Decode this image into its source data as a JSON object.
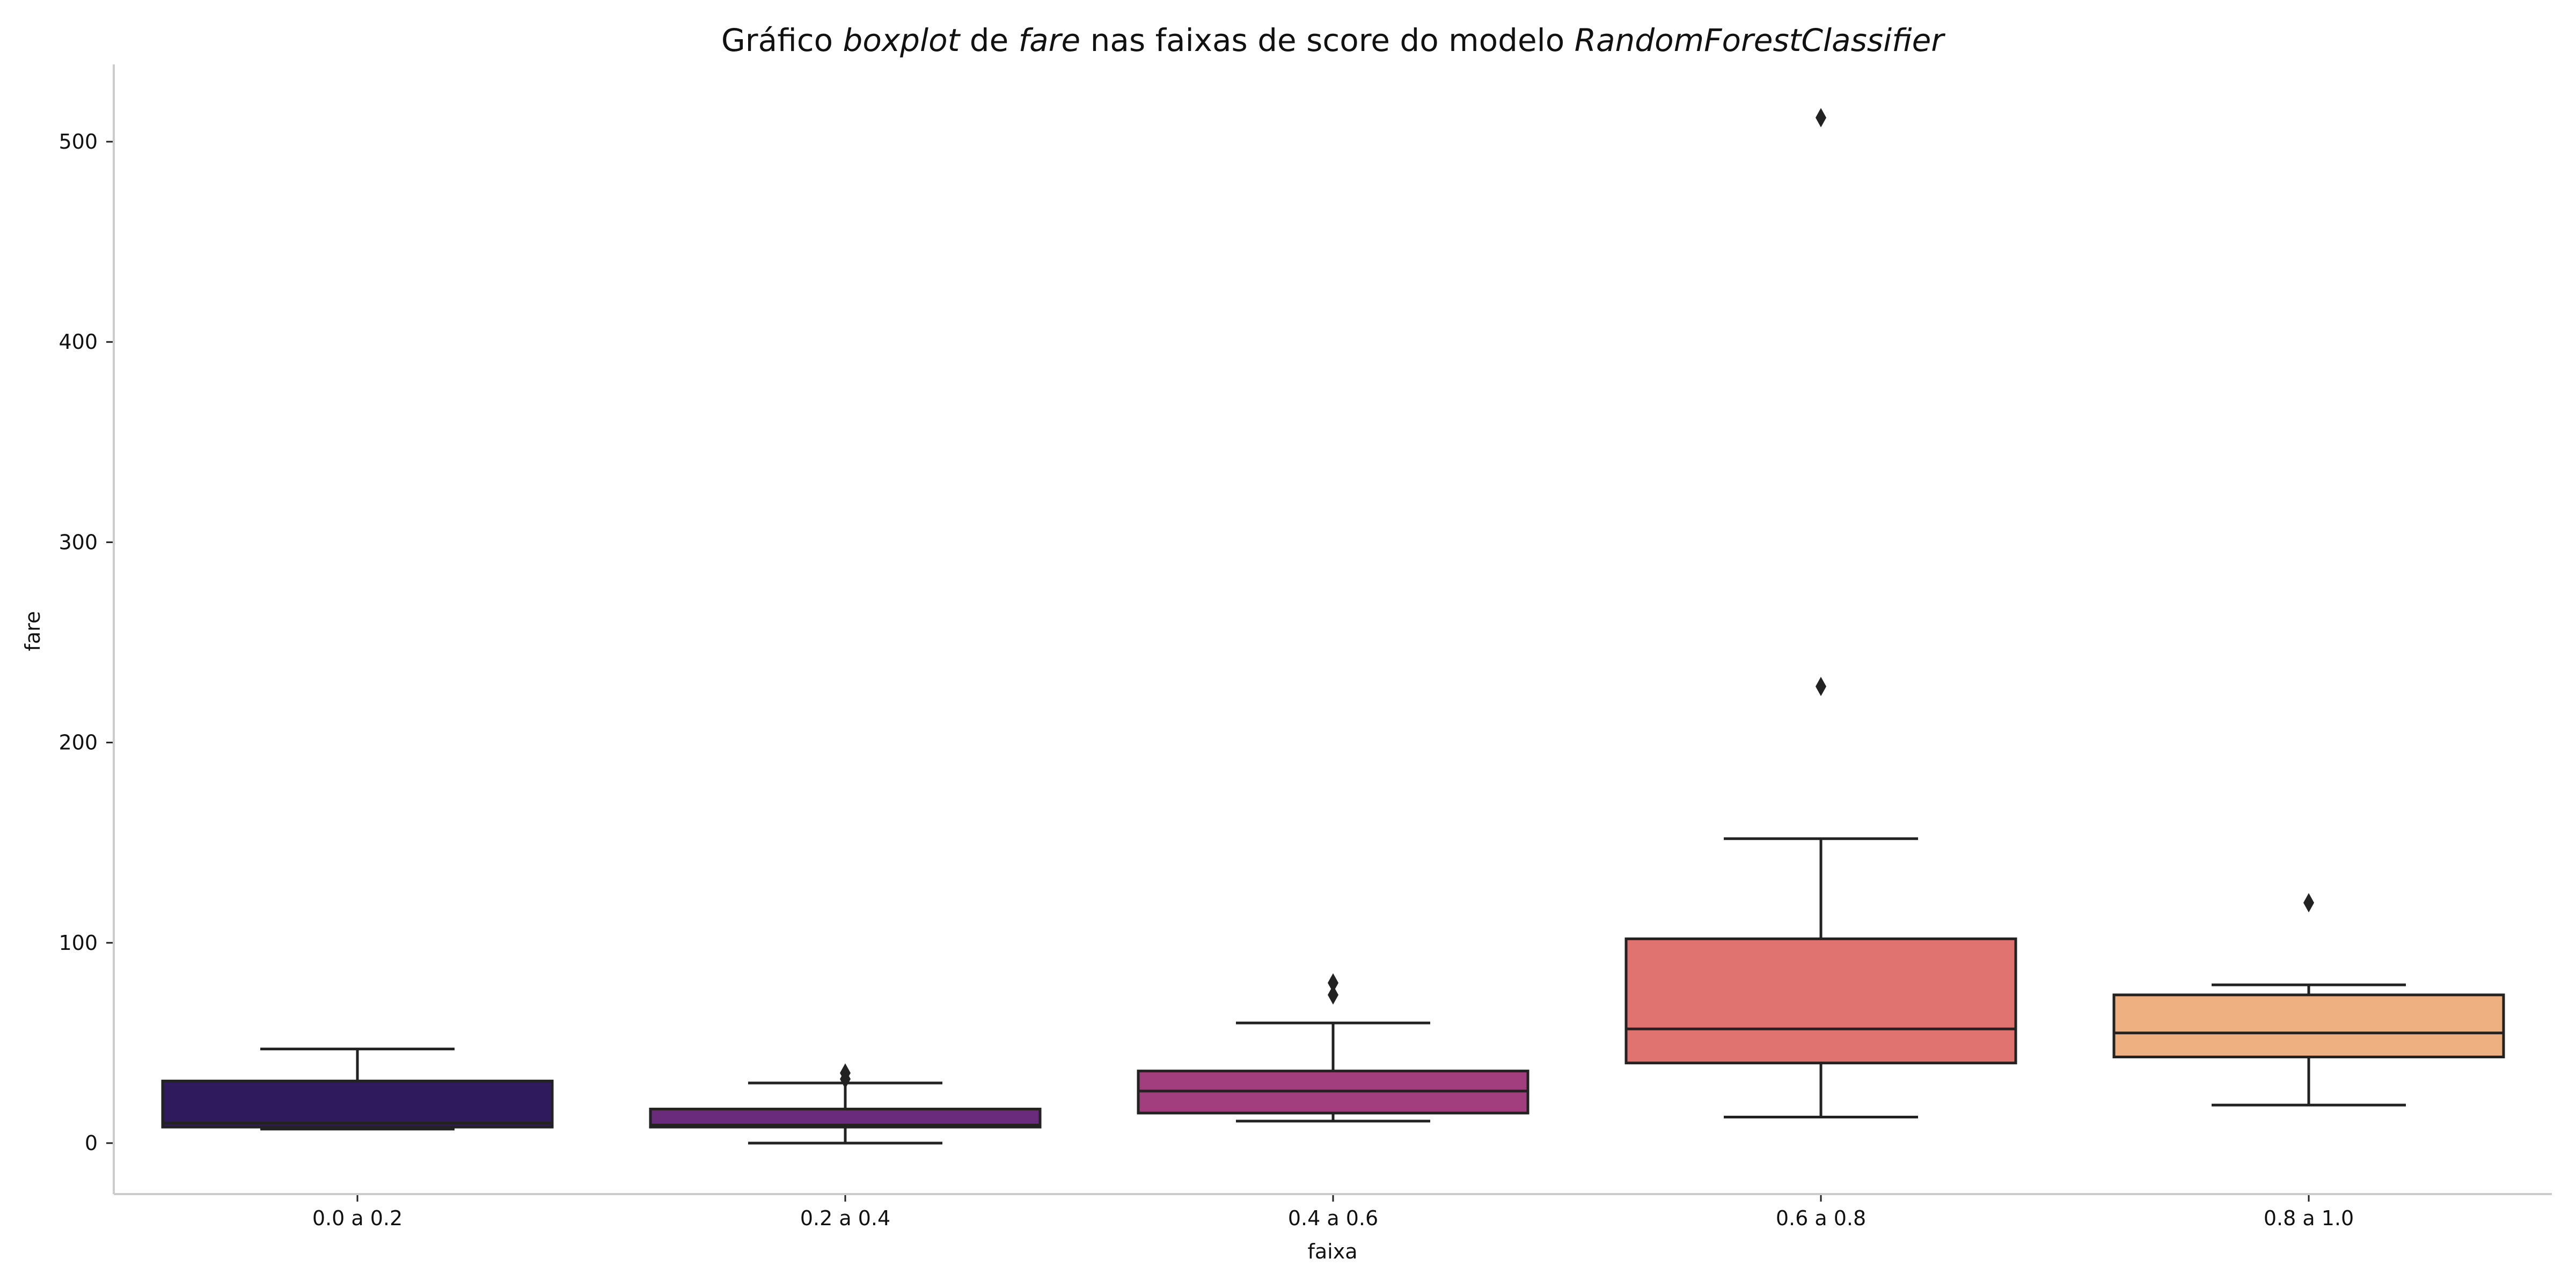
{
  "title_parts": [
    {
      "text": "Gráfico ",
      "italic": false
    },
    {
      "text": "boxplot",
      "italic": true
    },
    {
      "text": " de ",
      "italic": false
    },
    {
      "text": "fare",
      "italic": true
    },
    {
      "text": " nas faixas de score do modelo ",
      "italic": false
    },
    {
      "text": "RandomForestClassifier",
      "italic": true
    }
  ],
  "chart_data": {
    "type": "box",
    "title": "Gráfico boxplot de fare nas faixas de score do modelo RandomForestClassifier",
    "xlabel": "faixa",
    "ylabel": "fare",
    "ylim": [
      -25,
      540
    ],
    "yticks": [
      0,
      100,
      200,
      300,
      400,
      500
    ],
    "categories": [
      "0.0 a 0.2",
      "0.2 a 0.4",
      "0.4 a 0.6",
      "0.6 a 0.8",
      "0.8 a 1.0"
    ],
    "boxes": [
      {
        "category": "0.0 a 0.2",
        "whisker_low": 7,
        "q1": 8,
        "median": 10,
        "q3": 31,
        "whisker_high": 47,
        "outliers": [],
        "color": "#2e1a5c"
      },
      {
        "category": "0.2 a 0.4",
        "whisker_low": 0,
        "q1": 8,
        "median": 9,
        "q3": 17,
        "whisker_high": 30,
        "outliers": [
          32,
          35
        ],
        "color": "#6b2b7c"
      },
      {
        "category": "0.4 a 0.6",
        "whisker_low": 11,
        "q1": 15,
        "median": 26,
        "q3": 36,
        "whisker_high": 60,
        "outliers": [
          74,
          80
        ],
        "color": "#a23d7e"
      },
      {
        "category": "0.6 a 0.8",
        "whisker_low": 13,
        "q1": 40,
        "median": 57,
        "q3": 102,
        "whisker_high": 152,
        "outliers": [
          228,
          512
        ],
        "color": "#e07270"
      },
      {
        "category": "0.8 a 1.0",
        "whisker_low": 19,
        "q1": 43,
        "median": 55,
        "q3": 74,
        "whisker_high": 79,
        "outliers": [
          120
        ],
        "color": "#efb081"
      }
    ],
    "grid": false,
    "legend": "none"
  },
  "colors": {
    "axis": "#cccccc",
    "line": "#222222",
    "text": "#111111"
  }
}
